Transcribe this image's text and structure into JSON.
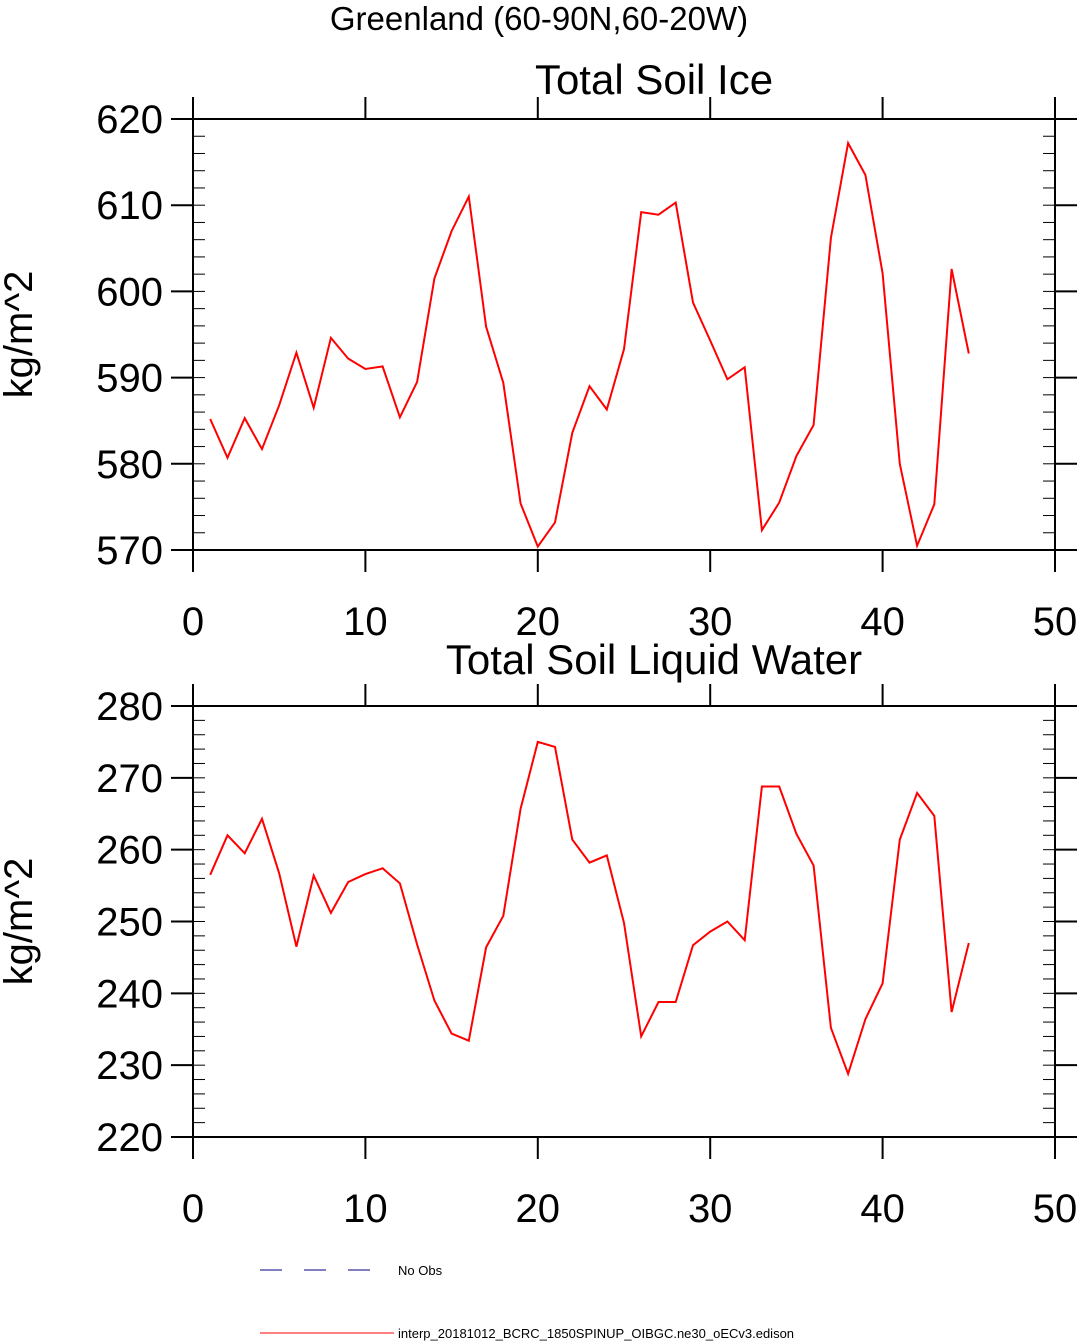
{
  "page": {
    "title": "Greenland (60-90N,60-20W)"
  },
  "colors": {
    "model_line": "#ff0000",
    "obs_line": "#000080",
    "axis": "#000000"
  },
  "legend": {
    "obs_label": "No Obs",
    "model_label": "interp_20181012_BCRC_1850SPINUP_OIBGC.ne30_oECv3.edison"
  },
  "chart_data": [
    {
      "type": "line",
      "title": "Total Soil Ice",
      "ylabel": "kg/m^2",
      "xlabel": "",
      "xlim": [
        0,
        50
      ],
      "ylim": [
        570,
        620
      ],
      "xticks": [
        0,
        10,
        20,
        30,
        40,
        50
      ],
      "yticks": [
        570,
        580,
        590,
        600,
        610,
        620
      ],
      "grid": false,
      "series": [
        {
          "name": "interp_20181012_BCRC_1850SPINUP_OIBGC.ne30_oECv3.edison",
          "color": "#ff0000",
          "x": [
            1,
            2,
            3,
            4,
            5,
            6,
            7,
            8,
            9,
            10,
            11,
            12,
            13,
            14,
            15,
            16,
            17,
            18,
            19,
            20,
            21,
            22,
            23,
            24,
            25,
            26,
            27,
            28,
            29,
            30,
            31,
            32,
            33,
            34,
            35,
            36,
            37,
            38,
            39,
            40,
            41,
            42,
            43,
            44,
            45
          ],
          "values": [
            585.2,
            580.7,
            585.3,
            581.7,
            586.8,
            592.9,
            586.5,
            594.6,
            592.2,
            591.0,
            591.3,
            585.4,
            589.5,
            601.5,
            607.0,
            611.0,
            595.9,
            589.4,
            575.4,
            570.4,
            573.2,
            583.6,
            589.0,
            586.3,
            593.3,
            609.2,
            608.9,
            610.3,
            598.7,
            594.3,
            589.8,
            591.2,
            572.3,
            575.5,
            580.9,
            584.5,
            606.2,
            617.2,
            613.5,
            602.1,
            580.0,
            570.5,
            575.3,
            602.6,
            592.8
          ]
        }
      ]
    },
    {
      "type": "line",
      "title": "Total Soil Liquid Water",
      "ylabel": "kg/m^2",
      "xlabel": "",
      "xlim": [
        0,
        50
      ],
      "ylim": [
        220,
        280
      ],
      "xticks": [
        0,
        10,
        20,
        30,
        40,
        50
      ],
      "yticks": [
        220,
        230,
        240,
        250,
        260,
        270,
        280
      ],
      "grid": false,
      "series": [
        {
          "name": "interp_20181012_BCRC_1850SPINUP_OIBGC.ne30_oECv3.edison",
          "color": "#ff0000",
          "x": [
            1,
            2,
            3,
            4,
            5,
            6,
            7,
            8,
            9,
            10,
            11,
            12,
            13,
            14,
            15,
            16,
            17,
            18,
            19,
            20,
            21,
            22,
            23,
            24,
            25,
            26,
            27,
            28,
            29,
            30,
            31,
            32,
            33,
            34,
            35,
            36,
            37,
            38,
            39,
            40,
            41,
            42,
            43,
            44,
            45
          ],
          "values": [
            256.5,
            262.0,
            259.5,
            264.3,
            256.7,
            246.5,
            256.4,
            251.2,
            255.5,
            256.6,
            257.4,
            255.3,
            246.8,
            239.0,
            234.4,
            233.4,
            246.4,
            250.8,
            265.7,
            275.0,
            274.3,
            261.4,
            258.2,
            259.2,
            249.8,
            234.0,
            238.8,
            238.8,
            246.7,
            248.6,
            250.0,
            247.4,
            268.8,
            268.8,
            262.2,
            257.8,
            235.2,
            228.8,
            236.4,
            241.4,
            261.4,
            267.9,
            264.7,
            237.4,
            247.0
          ]
        }
      ]
    }
  ]
}
